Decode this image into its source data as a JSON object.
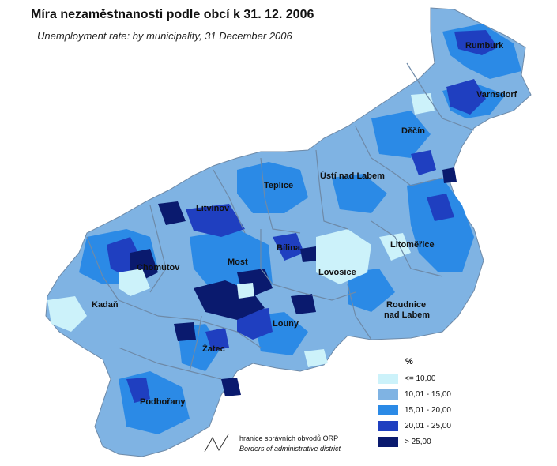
{
  "header": {
    "title": "Míra nezaměstnanosti podle obcí k 31. 12. 2006",
    "subtitle": "Unemployment rate: by  municipality, 31 December 2006"
  },
  "colors": {
    "class1": "#ccf2fa",
    "class2": "#7fb3e3",
    "class3": "#2b8ae6",
    "class4": "#1f3fc0",
    "class5": "#0a1a6e",
    "border": "#6e8aa8"
  },
  "legend": {
    "unit": "%",
    "items": [
      {
        "label": "<= 10,00",
        "color": "#ccf2fa"
      },
      {
        "label": "10,01 - 15,00",
        "color": "#7fb3e3"
      },
      {
        "label": "15,01 - 20,00",
        "color": "#2b8ae6"
      },
      {
        "label": "20,01 - 25,00",
        "color": "#1f3fc0"
      },
      {
        "label": "> 25,00",
        "color": "#0a1a6e"
      }
    ],
    "border_label": "hranice  správních obvodů ORP",
    "border_label_en": "Borders of administrative district"
  },
  "cities": [
    "Rumburk",
    "Varnsdorf",
    "Děčín",
    "Ústí nad Labem",
    "Teplice",
    "Litvínov",
    "Bílina",
    "Most",
    "Chomutov",
    "Litoměřice",
    "Lovosice",
    "Kadaň",
    "Louny",
    "Roudnice",
    "nad Labem",
    "Žatec",
    "Podbořany"
  ]
}
